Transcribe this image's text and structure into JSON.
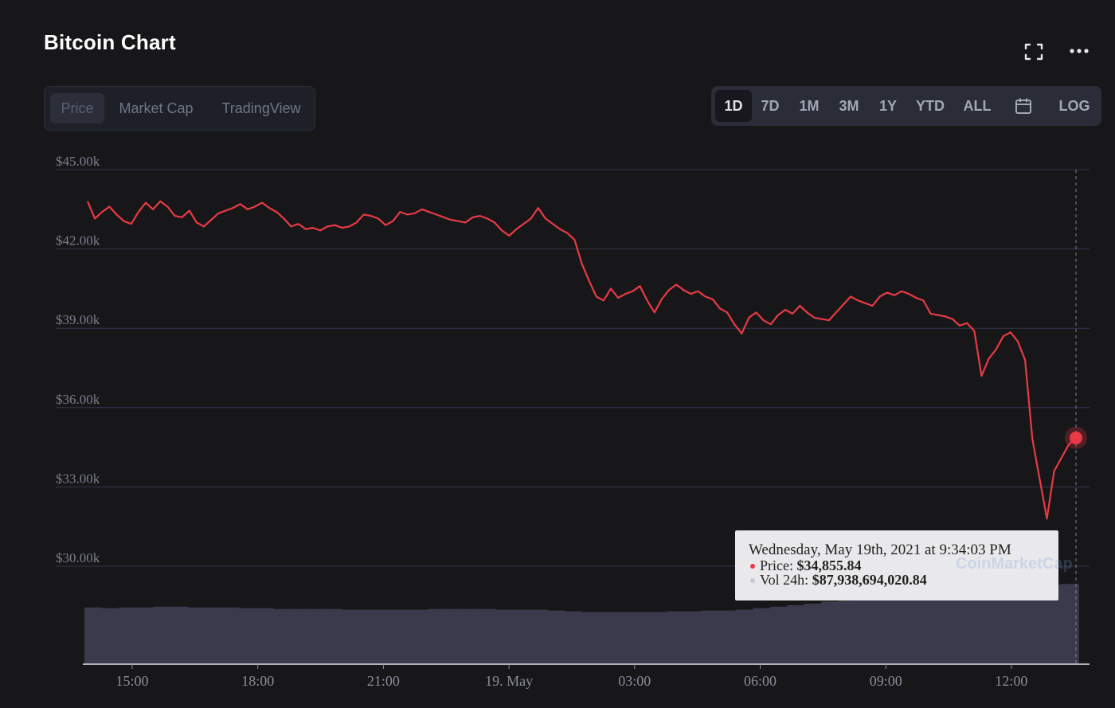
{
  "header": {
    "title": "Bitcoin Chart",
    "expand_icon": "expand-icon",
    "more_icon": "more-icon"
  },
  "view_tabs": [
    {
      "label": "Price",
      "active": true
    },
    {
      "label": "Market Cap",
      "active": false
    },
    {
      "label": "TradingView",
      "active": false
    }
  ],
  "range_tabs": [
    {
      "label": "1D",
      "active": true
    },
    {
      "label": "7D",
      "active": false
    },
    {
      "label": "1M",
      "active": false
    },
    {
      "label": "3M",
      "active": false
    },
    {
      "label": "1Y",
      "active": false
    },
    {
      "label": "YTD",
      "active": false
    },
    {
      "label": "ALL",
      "active": false
    },
    {
      "label": "",
      "icon": "calendar-icon",
      "active": false
    },
    {
      "label": "LOG",
      "active": false
    }
  ],
  "colors": {
    "price_line": "#e83a44",
    "volume_fill": "#3a3a4c",
    "background": "#17171a",
    "grid": "#34364a"
  },
  "tooltip": {
    "date": "Wednesday, May 19th, 2021 at 9:34:03 PM",
    "price_label": "Price:",
    "price_value": "$34,855.84",
    "vol_label": "Vol 24h:",
    "vol_value": "$87,938,694,020.84",
    "watermark": "CoinMarketCap"
  },
  "chart_data": {
    "type": "line",
    "series": [
      {
        "values": [
          43800,
          43150,
          43400,
          43600,
          43300,
          43050,
          42950,
          43400,
          43750,
          43500,
          43800,
          43600,
          43250,
          43200,
          43450,
          43000,
          42850,
          43100,
          43350,
          43450,
          43550,
          43700,
          43500,
          43600,
          43750,
          43550,
          43400,
          43150,
          42850,
          42950,
          42750,
          42800,
          42700,
          42850,
          42900,
          42800,
          42850,
          43000,
          43300,
          43250,
          43150,
          42900,
          43050,
          43400,
          43300,
          43350,
          43500,
          43400,
          43300,
          43200,
          43100,
          43050,
          43000,
          43200,
          43250,
          43150,
          43000,
          42700,
          42500,
          42750,
          42950,
          43150,
          43550,
          43150,
          42950,
          42750,
          42600,
          42350,
          41450,
          40800,
          40200,
          40050,
          40500,
          40150,
          40300,
          40400,
          40600,
          40050,
          39600,
          40100,
          40450,
          40650,
          40450,
          40300,
          40400,
          40200,
          40100,
          39750,
          39600,
          39150,
          38800,
          39400,
          39600,
          39300,
          39150,
          39500,
          39700,
          39550,
          39850,
          39600,
          39400,
          39350,
          39300,
          39600,
          39900,
          40200,
          40050,
          39950,
          39850,
          40200,
          40350,
          40250,
          40400,
          40300,
          40150,
          40050,
          39550,
          39500,
          39450,
          39350,
          39100,
          39200,
          38900,
          37200,
          37850,
          38200,
          38700,
          38850,
          38500,
          37800,
          34800,
          33300,
          31800,
          33600,
          34100,
          34600,
          34856
        ]
      }
    ],
    "volume_note": "24h volume bars shown beneath price line",
    "volume_values": [
      75,
      74,
      75,
      75,
      76,
      76,
      75,
      75,
      75,
      74,
      74,
      73,
      73,
      73,
      73,
      72,
      72,
      72,
      72,
      72,
      73,
      73,
      73,
      73,
      72,
      72,
      72,
      71,
      70,
      69,
      69,
      69,
      69,
      69,
      70,
      70,
      71,
      71,
      72,
      74,
      76,
      78,
      80,
      83,
      84,
      86,
      88,
      90,
      92,
      94,
      96,
      97,
      98,
      100,
      102,
      104,
      105,
      106
    ],
    "x_ticks": [
      "15:00",
      "18:00",
      "21:00",
      "19. May",
      "03:00",
      "06:00",
      "09:00",
      "12:00"
    ],
    "y_ticks": [
      "$45.00k",
      "$42.00k",
      "$39.00k",
      "$36.00k",
      "$33.00k",
      "$30.00k"
    ],
    "y_tick_values": [
      45000,
      42000,
      39000,
      36000,
      33000,
      30000
    ],
    "ylim": [
      30000,
      45000
    ],
    "highlight_point": {
      "value": 34856
    },
    "grid": true
  }
}
